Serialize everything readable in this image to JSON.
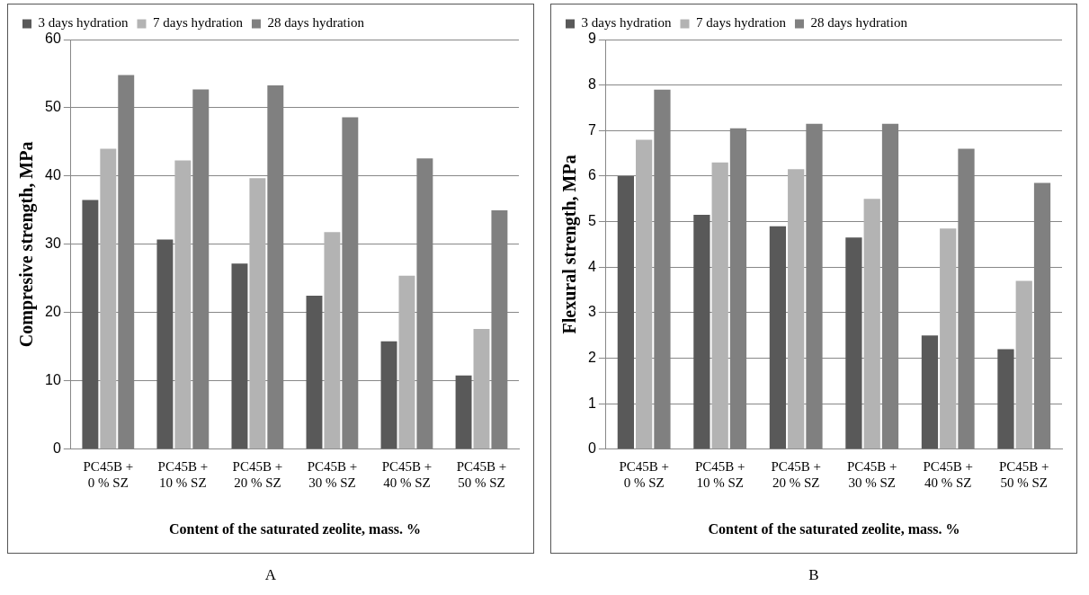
{
  "chart_data": [
    {
      "type": "bar",
      "categories": [
        "PC45B +\n0 % SZ",
        "PC45B +\n10 % SZ",
        "PC45B +\n20 % SZ",
        "PC45B +\n30 % SZ",
        "PC45B +\n40 % SZ",
        "PC45B +\n50 % SZ"
      ],
      "series": [
        {
          "name": "3 days hydration",
          "color": "#595959",
          "values": [
            36.5,
            30.7,
            27.2,
            22.5,
            15.8,
            10.8
          ]
        },
        {
          "name": "7 days hydration",
          "color": "#b3b3b3",
          "values": [
            44,
            42.3,
            39.7,
            31.8,
            25.4,
            17.6
          ]
        },
        {
          "name": "28 days hydration",
          "color": "#808080",
          "values": [
            54.8,
            52.7,
            53.3,
            48.6,
            42.6,
            35
          ]
        }
      ],
      "xlabel": "Content of the saturated zeolite, mass. %",
      "ylabel": "Compresive strength, MPa",
      "ylim": [
        0,
        60
      ],
      "yticks": [
        0,
        10,
        20,
        30,
        40,
        50,
        60
      ],
      "grid": "y",
      "legend": "top",
      "annotations": [
        "A"
      ]
    },
    {
      "type": "bar",
      "categories": [
        "PC45B +\n0 % SZ",
        "PC45B +\n10 % SZ",
        "PC45B +\n20 % SZ",
        "PC45B +\n30 % SZ",
        "PC45B +\n40 % SZ",
        "PC45B +\n50 % SZ"
      ],
      "series": [
        {
          "name": "3 days hydration",
          "color": "#595959",
          "values": [
            6.0,
            5.15,
            4.9,
            4.65,
            2.5,
            2.2
          ]
        },
        {
          "name": "7 days hydration",
          "color": "#b3b3b3",
          "values": [
            6.8,
            6.3,
            6.15,
            5.5,
            4.85,
            3.7
          ]
        },
        {
          "name": "28 days hydration",
          "color": "#808080",
          "values": [
            7.9,
            7.05,
            7.15,
            7.15,
            6.6,
            5.85
          ]
        }
      ],
      "xlabel": "Content of the saturated zeolite, mass. %",
      "ylabel": "Flexural strength, MPa",
      "ylim": [
        0,
        9
      ],
      "yticks": [
        0,
        1,
        2,
        3,
        4,
        5,
        6,
        7,
        8,
        9
      ],
      "grid": "y",
      "legend": "top",
      "annotations": [
        "B"
      ]
    }
  ]
}
